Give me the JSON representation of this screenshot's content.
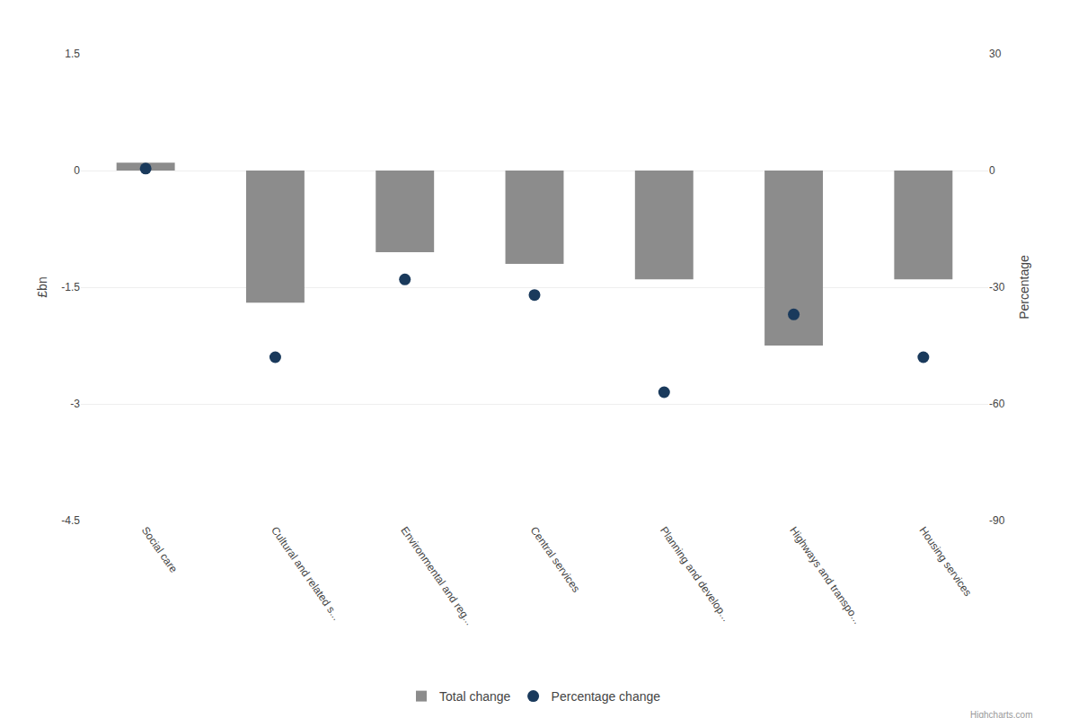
{
  "chart_data": {
    "type": "bar",
    "categories": [
      "Social care",
      "Cultural and related s...",
      "Environmental and reg...",
      "Central services",
      "Planning and develop...",
      "Highways and transpo...",
      "Housing services"
    ],
    "series": [
      {
        "name": "Total change",
        "type": "bar",
        "color": "#8c8c8c",
        "values": [
          0.1,
          -1.7,
          -1.05,
          -1.2,
          -1.4,
          -2.25,
          -1.4
        ]
      },
      {
        "name": "Percentage change",
        "type": "scatter",
        "marker": "circle",
        "color": "#1a3a5c",
        "axis": "y2",
        "values": [
          0.5,
          -48,
          -28,
          -32,
          -57,
          -37,
          -48
        ]
      }
    ],
    "ylabel": "£bn",
    "y2label": "Percentage",
    "ylim": [
      -4.5,
      1.5
    ],
    "yticks": [
      1.5,
      0,
      -1.5,
      -3,
      -4.5
    ],
    "y2lim": [
      -90,
      30
    ],
    "y2ticks": [
      30,
      0,
      -30,
      -60,
      -90
    ],
    "grid": true,
    "legend": "bottom",
    "annotations": [
      "Highcharts.com"
    ]
  }
}
